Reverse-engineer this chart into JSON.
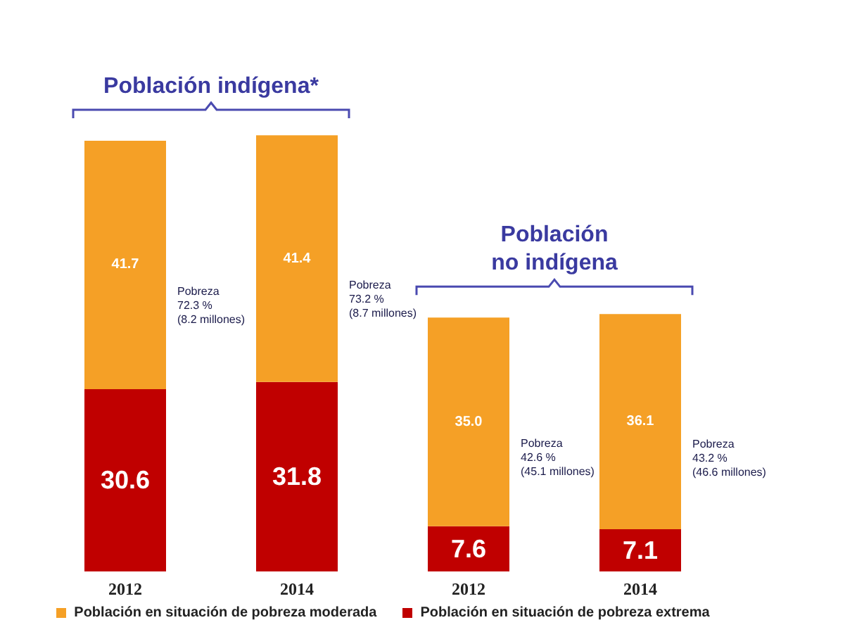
{
  "chart_data": {
    "type": "bar",
    "stacked": true,
    "categories": [
      "2012",
      "2014",
      "2012",
      "2014"
    ],
    "series": [
      {
        "name": "Población en situación de pobreza extrema",
        "color": "#c00000",
        "values": [
          30.6,
          31.8,
          7.6,
          7.1
        ]
      },
      {
        "name": "Población en situación de pobreza  moderada",
        "color": "#f5a026",
        "values": [
          41.7,
          41.4,
          35.0,
          36.1
        ],
        "value_labels": [
          "41.7",
          "41.4",
          "35.0",
          "36.1"
        ]
      }
    ],
    "data_labels": true,
    "legend": "bottom",
    "grid": false,
    "annotations": [
      "Población indígena*",
      "Población\nno indígena",
      "Pobreza\n72.3 %\n(8.2 millones)",
      "Pobreza\n73.2 %\n(8.7 millones)",
      "Pobreza\n42.6 %\n(45.1 millones)",
      "Pobreza\n43.2 %\n(46.6 millones)"
    ]
  }
}
